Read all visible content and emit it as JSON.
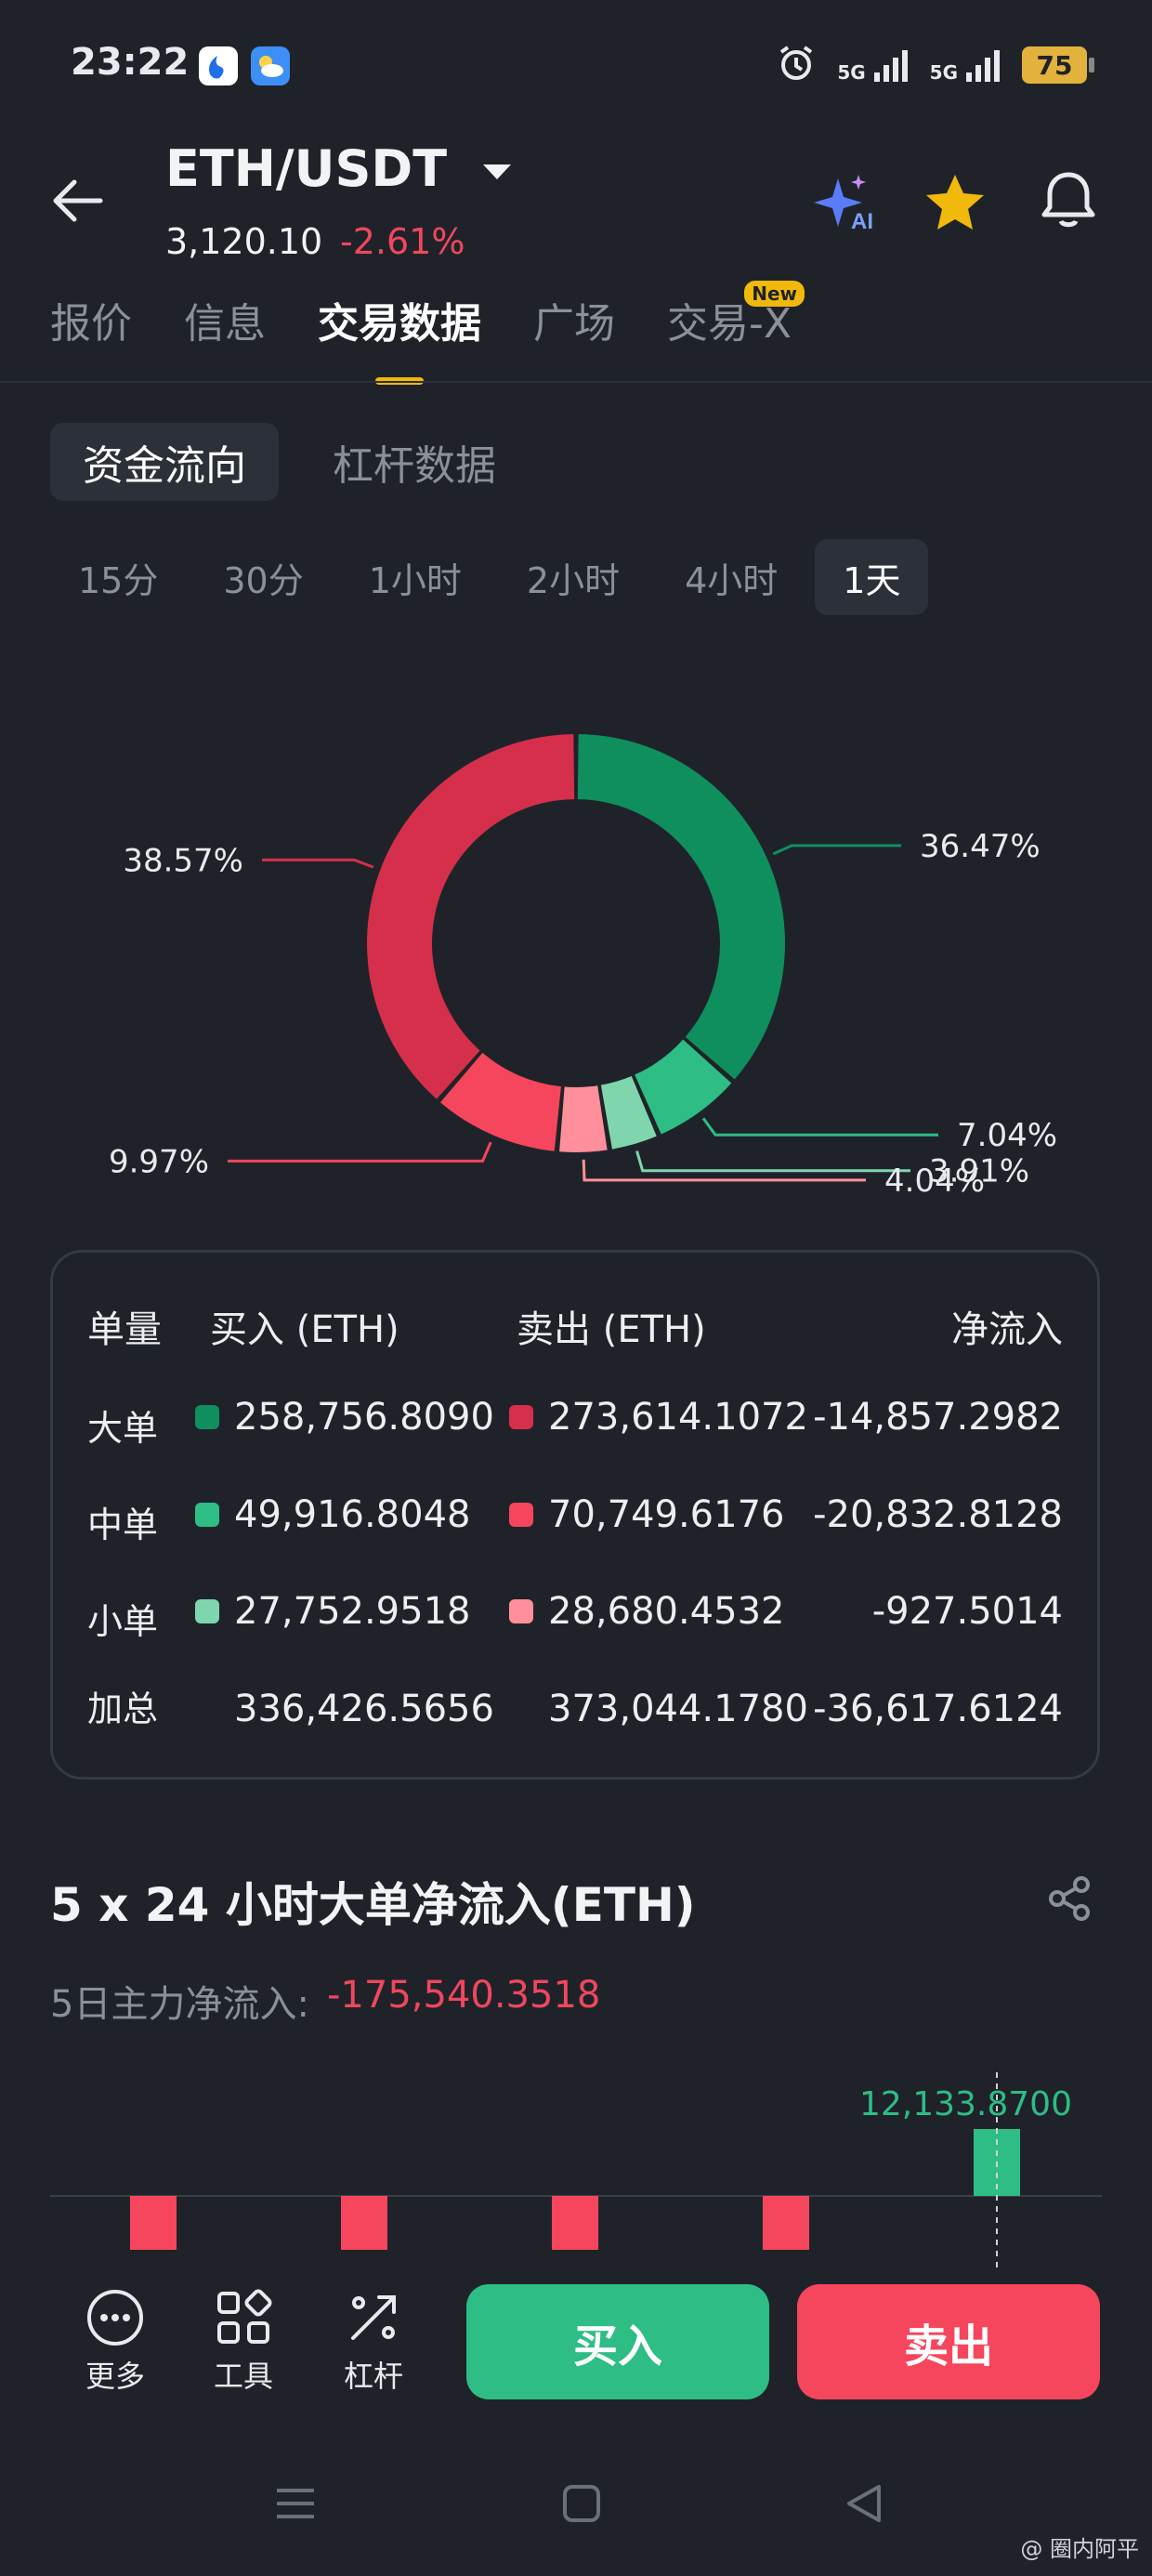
{
  "status_bar": {
    "time": "23:22",
    "signal1": "5G",
    "signal2": "5G",
    "battery": "75"
  },
  "header": {
    "pair": "ETH/USDT",
    "price": "3,120.10",
    "change": "-2.61%",
    "ai_badge": "AI"
  },
  "tabs": [
    {
      "label": "报价"
    },
    {
      "label": "信息"
    },
    {
      "label": "交易数据"
    },
    {
      "label": "广场"
    },
    {
      "label": "交易-X",
      "badge": "New"
    }
  ],
  "active_tab": "交易数据",
  "subtabs": [
    "资金流向",
    "杠杆数据"
  ],
  "intervals": [
    "15分",
    "30分",
    "1小时",
    "2小时",
    "4小时",
    "1天"
  ],
  "active_interval": "1天",
  "donut": {
    "slices": [
      {
        "label": "36.47%",
        "value": 36.47,
        "color": "#0f8f5e"
      },
      {
        "label": "7.04%",
        "value": 7.04,
        "color": "#2ebd85"
      },
      {
        "label": "3.91%",
        "value": 3.91,
        "color": "#7fd6ad"
      },
      {
        "label": "4.04%",
        "value": 4.04,
        "color": "#ff8f9a"
      },
      {
        "label": "9.97%",
        "value": 9.97,
        "color": "#f6465d"
      },
      {
        "label": "38.57%",
        "value": 38.57,
        "color": "#d62f4c"
      }
    ]
  },
  "flow_table": {
    "headers": {
      "size": "单量",
      "buy": "买入 (ETH)",
      "sell": "卖出 (ETH)",
      "net": "净流入"
    },
    "rows": [
      {
        "label": "大单",
        "buy": "258,756.8090",
        "sell": "273,614.1072",
        "net": "-14,857.2982",
        "buy_color": "#0f8f5e",
        "sell_color": "#d62f4c"
      },
      {
        "label": "中单",
        "buy": "49,916.8048",
        "sell": "70,749.6176",
        "net": "-20,832.8128",
        "buy_color": "#2ebd85",
        "sell_color": "#f6465d"
      },
      {
        "label": "小单",
        "buy": "27,752.9518",
        "sell": "28,680.4532",
        "net": "-927.5014",
        "buy_color": "#7fd6ad",
        "sell_color": "#ff8f9a"
      },
      {
        "label": "加总",
        "buy": "336,426.5656",
        "sell": "373,044.1780",
        "net": "-36,617.6124"
      }
    ]
  },
  "net_inflow": {
    "title": "5 x 24 小时大单净流入(ETH)",
    "summary_label": "5日主力净流入:",
    "summary_value": "-175,540.3518",
    "highlight_label": "12,133.8700"
  },
  "chart_data": {
    "type": "bar",
    "title": "5 x 24 小时大单净流入(ETH)",
    "categories": [
      "",
      "",
      "",
      "",
      ""
    ],
    "values": [
      -1,
      -1,
      -1,
      -1,
      12133.87
    ],
    "colors": [
      "#f6465d",
      "#f6465d",
      "#f6465d",
      "#f6465d",
      "#2ebd85"
    ],
    "note": "",
    "visible_crop": true
  },
  "actions": {
    "tools": [
      {
        "label": "更多",
        "icon": "more-icon"
      },
      {
        "label": "工具",
        "icon": "grid-icon"
      },
      {
        "label": "杠杆",
        "icon": "leverage-icon"
      }
    ],
    "buy": "买入",
    "sell": "卖出"
  },
  "watermark": "@ 圈内阿平",
  "colors": {
    "bg": "#1f2329",
    "accent": "#f0b90b",
    "up": "#2ebd85",
    "down": "#f6465d"
  }
}
